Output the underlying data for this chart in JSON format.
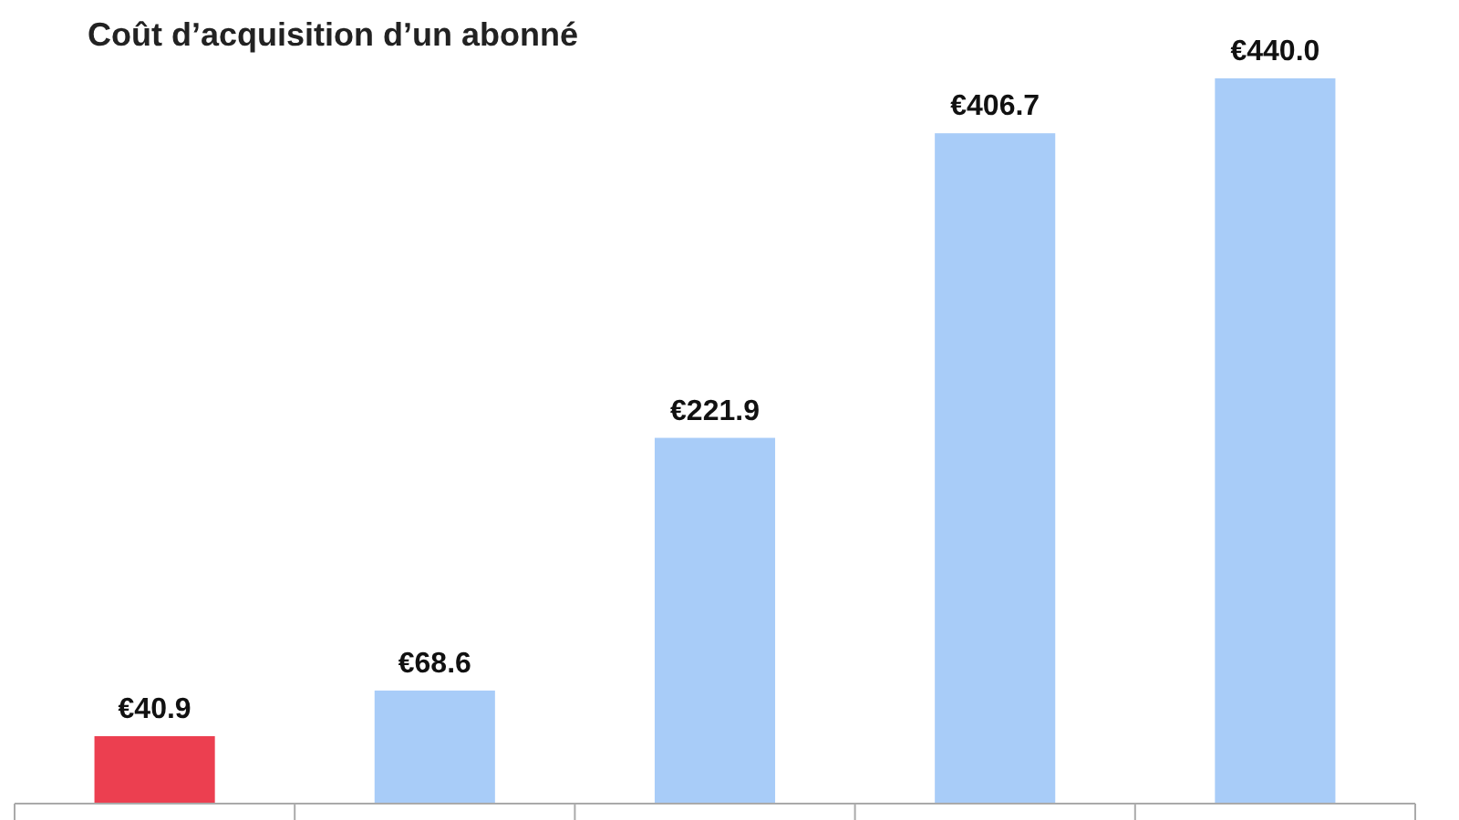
{
  "chart_data": {
    "type": "bar",
    "title": "Coût d’acquisition d’un abonné",
    "categories": [
      null,
      null,
      null,
      null,
      null
    ],
    "values": [
      40.9,
      68.6,
      221.9,
      406.7,
      440.0
    ],
    "colors": [
      "#ec3f50",
      "#a8ccf8",
      "#a8ccf8",
      "#a8ccf8",
      "#a8ccf8"
    ],
    "value_labels": [
      "€40.9",
      "€68.6",
      "€221.9",
      "€406.7",
      "€440.0"
    ]
  }
}
